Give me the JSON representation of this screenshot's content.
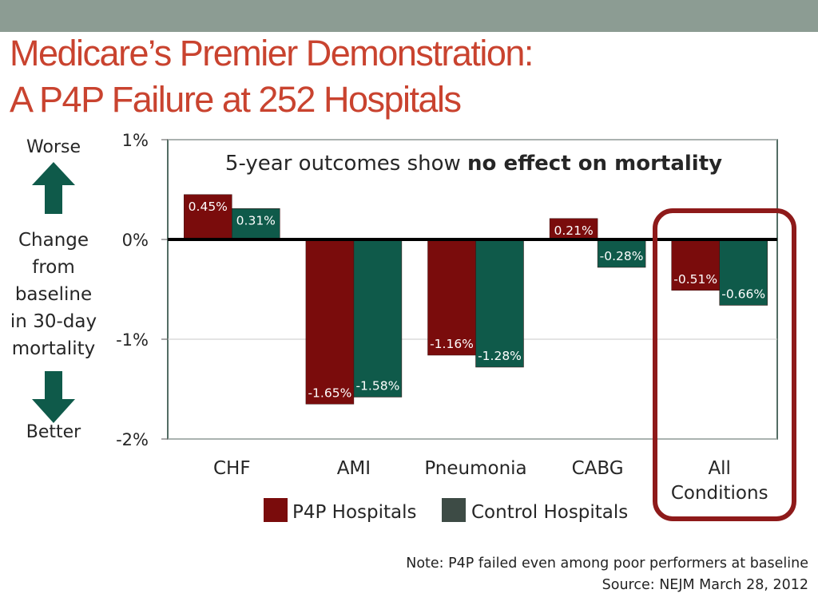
{
  "slide": {
    "title_line1": "Medicare’s Premier Demonstration:",
    "title_line2": "A P4P Failure at 252 Hospitals",
    "label_worse": "Worse",
    "label_change": [
      "Change",
      "from",
      "baseline",
      "in 30-day",
      "mortality"
    ],
    "label_better": "Better",
    "note": "Note: P4P failed even among poor performers at baseline",
    "source": "Source: NEJM March 28, 2012"
  },
  "colors": {
    "p4p": "#7a0c0c",
    "control": "#0f5a4a",
    "highlight": "#8e1a1a",
    "arrow": "#0f5a4a",
    "title": "#c9432f"
  },
  "chart_data": {
    "type": "bar",
    "title_prefix": "5-year outcomes show ",
    "title_bold": "no effect on mortality",
    "categories": [
      "CHF",
      "AMI",
      "Pneumonia",
      "CABG",
      "All Conditions"
    ],
    "category_lines": [
      [
        "CHF"
      ],
      [
        "AMI"
      ],
      [
        "Pneumonia"
      ],
      [
        "CABG"
      ],
      [
        "All",
        "Conditions"
      ]
    ],
    "series": [
      {
        "name": "P4P Hospitals",
        "values": [
          0.45,
          -1.65,
          -1.16,
          0.21,
          -0.51
        ],
        "labels": [
          "0.45%",
          "-1.65%",
          "-1.16%",
          "0.21%",
          "-0.51%"
        ]
      },
      {
        "name": "Control Hospitals",
        "values": [
          0.31,
          -1.58,
          -1.28,
          -0.28,
          -0.66
        ],
        "labels": [
          "0.31%",
          "-1.58%",
          "-1.28%",
          "-0.28%",
          "-0.66%"
        ]
      }
    ],
    "ylim": [
      -2,
      1
    ],
    "yticks": [
      1,
      0,
      -1,
      -2
    ],
    "ytick_labels": [
      "1%",
      "0%",
      "-1%",
      "-2%"
    ],
    "grid": true,
    "legend_position": "bottom",
    "highlighted_category": "All Conditions"
  }
}
